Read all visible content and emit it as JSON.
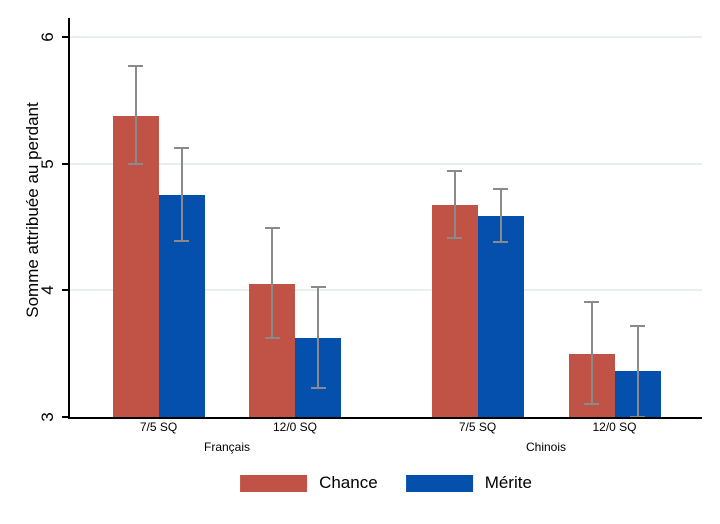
{
  "chart_data": {
    "type": "bar",
    "title": "",
    "ylabel": "Somme attribuée au perdant",
    "xlabel": "",
    "ylim": [
      3,
      6.15
    ],
    "yticks": [
      3,
      4,
      5,
      6
    ],
    "grid": true,
    "legend_position": "bottom-center",
    "error_bars": true,
    "categories": [
      "7/5 SQ",
      "12/0 SQ",
      "7/5 SQ",
      "12/0 SQ"
    ],
    "supergroups": [
      "Français",
      "Chinois"
    ],
    "series": [
      {
        "name": "Chance",
        "color": "#c05246",
        "values": [
          5.38,
          4.05,
          4.67,
          3.5
        ],
        "ci_low": [
          5.0,
          3.62,
          4.41,
          3.1
        ],
        "ci_high": [
          5.77,
          4.49,
          4.94,
          3.91
        ]
      },
      {
        "name": "Mérite",
        "color": "#0450ac",
        "values": [
          4.75,
          3.62,
          4.59,
          3.36
        ],
        "ci_low": [
          4.39,
          3.23,
          4.38,
          3.0
        ],
        "ci_high": [
          5.12,
          4.03,
          4.8,
          3.72
        ]
      }
    ],
    "error_bar_color": "#8a8a8a",
    "gridline_color": "#e6f1ef",
    "axis_color": "#000000",
    "background_color": "#ffffff"
  }
}
